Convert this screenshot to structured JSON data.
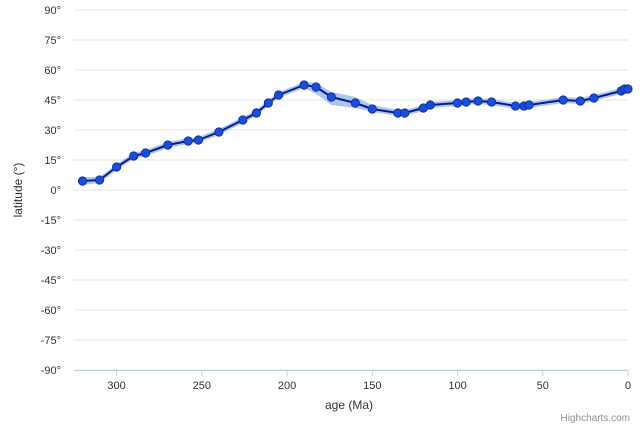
{
  "chart_data": {
    "type": "line",
    "xlabel": "age (Ma)",
    "ylabel": "latitude (°)",
    "x_reversed": true,
    "xlim": [
      0,
      325
    ],
    "ylim": [
      -90,
      90
    ],
    "x_ticks": [
      300,
      250,
      200,
      150,
      100,
      50,
      0
    ],
    "y_ticks": [
      90,
      75,
      60,
      45,
      30,
      15,
      0,
      -15,
      -30,
      -45,
      -60,
      -75,
      -90
    ],
    "y_tick_labels": [
      "90°",
      "75°",
      "60°",
      "45°",
      "30°",
      "15°",
      "0°",
      "-15°",
      "-30°",
      "-45°",
      "-60°",
      "-75°",
      "-90°"
    ],
    "grid": true,
    "legend": "none",
    "series": [
      {
        "x": [
          320,
          310,
          300,
          290,
          283,
          270,
          258,
          252,
          240,
          226,
          218,
          211,
          205,
          190,
          183,
          174,
          160,
          150,
          135,
          131,
          120,
          116,
          100,
          95,
          88,
          80,
          66,
          61,
          58,
          38,
          28,
          20,
          4,
          2,
          0
        ],
        "y": [
          4.5,
          5,
          11.5,
          17,
          18.5,
          22.5,
          24.5,
          25,
          29,
          35,
          38.5,
          43.5,
          47.5,
          52.5,
          51.5,
          46.5,
          43.5,
          40.5,
          38.5,
          38.5,
          41,
          42.5,
          43.5,
          44,
          44.5,
          44,
          42,
          42,
          42.5,
          45,
          44.5,
          46,
          49.5,
          50.5,
          50.5
        ],
        "band_low": [
          2.5,
          3.5,
          10,
          15.5,
          17,
          21,
          23,
          23.5,
          27.5,
          33.5,
          37,
          42,
          46,
          51,
          48,
          42.5,
          41,
          39,
          37,
          37,
          39.5,
          41,
          42,
          42.5,
          43,
          42.5,
          40.5,
          40.5,
          41,
          43.5,
          43,
          44.5,
          48,
          49,
          49
        ],
        "band_high": [
          6.5,
          6.5,
          13,
          18.5,
          20,
          24,
          26,
          26.5,
          30.5,
          36.5,
          40,
          45,
          49,
          54,
          53.5,
          49,
          46.5,
          42.5,
          40,
          40,
          42.5,
          44,
          45,
          45.5,
          46,
          45.5,
          43.5,
          43.5,
          44,
          46.5,
          46,
          47.5,
          51,
          52,
          52
        ],
        "color": "#1a4ed8",
        "line_color": "#0a1a8a",
        "band_color": "#8fb4ea"
      }
    ]
  },
  "credits": "Highcharts.com"
}
